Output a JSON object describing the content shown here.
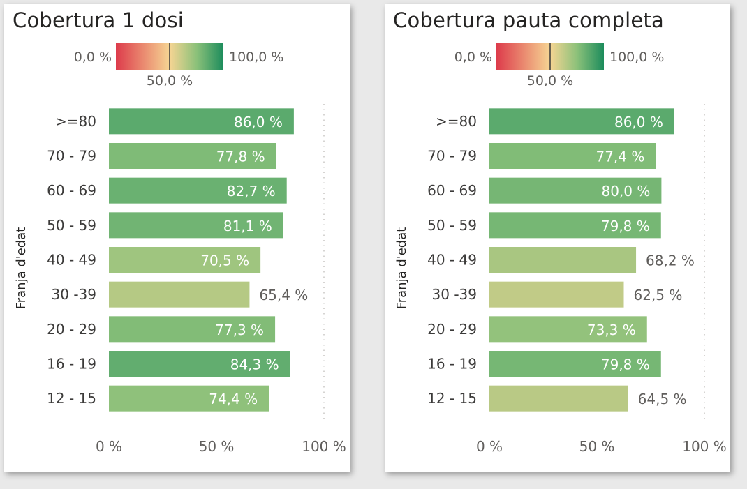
{
  "chart_data": [
    {
      "type": "bar",
      "orientation": "horizontal",
      "title": "Cobertura 1 dosi",
      "ylabel": "Franja d'edat",
      "categories": [
        ">=80",
        "70 - 79",
        "60 - 69",
        "50 - 59",
        "40 - 49",
        "30 -39",
        "20 - 29",
        "16 - 19",
        "12 - 15"
      ],
      "values": [
        86.0,
        77.8,
        82.7,
        81.1,
        70.5,
        65.4,
        77.3,
        84.3,
        74.4
      ],
      "value_labels": [
        "86,0 %",
        "77,8 %",
        "82,7 %",
        "81,1 %",
        "70,5 %",
        "65,4 %",
        "77,3 %",
        "84,3 %",
        "74,4 %"
      ],
      "xlim": [
        0,
        100
      ],
      "x_ticks": [
        "0 %",
        "50 %",
        "100 %"
      ],
      "grid": "vertical dotted at 100",
      "color_scale": {
        "min_label": "0,0 %",
        "mid_label": "50,0 %",
        "max_label": "100,0 %",
        "colors": [
          "#dd3b4b",
          "#f6d593",
          "#8cc17a",
          "#1c8c5c"
        ]
      }
    },
    {
      "type": "bar",
      "orientation": "horizontal",
      "title": "Cobertura pauta completa",
      "ylabel": "Franja d'edat",
      "categories": [
        ">=80",
        "70 - 79",
        "60 - 69",
        "50 - 59",
        "40 - 49",
        "30 -39",
        "20 - 29",
        "16 - 19",
        "12 - 15"
      ],
      "values": [
        86.0,
        77.4,
        80.0,
        79.8,
        68.2,
        62.5,
        73.3,
        79.8,
        64.5
      ],
      "value_labels": [
        "86,0 %",
        "77,4 %",
        "80,0 %",
        "79,8 %",
        "68,2 %",
        "62,5 %",
        "73,3 %",
        "79,8 %",
        "64,5 %"
      ],
      "xlim": [
        0,
        100
      ],
      "x_ticks": [
        "0 %",
        "50 %",
        "100 %"
      ],
      "grid": "vertical dotted at 100",
      "color_scale": {
        "min_label": "0,0 %",
        "mid_label": "50,0 %",
        "max_label": "100,0 %",
        "colors": [
          "#dd3b4b",
          "#f6d593",
          "#8cc17a",
          "#1c8c5c"
        ]
      }
    }
  ]
}
